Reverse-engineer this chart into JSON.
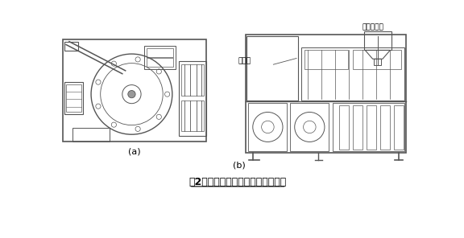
{
  "title": "图2给袋式自动包装机结构示意图。",
  "label_a": "(a)",
  "label_b": "(b)",
  "label_sauce": "酱料灌装机",
  "label_control": "控制箱",
  "bg_color": "#ffffff",
  "line_color": "#555555",
  "light_gray": "#aaaaaa",
  "mid_gray": "#777777"
}
